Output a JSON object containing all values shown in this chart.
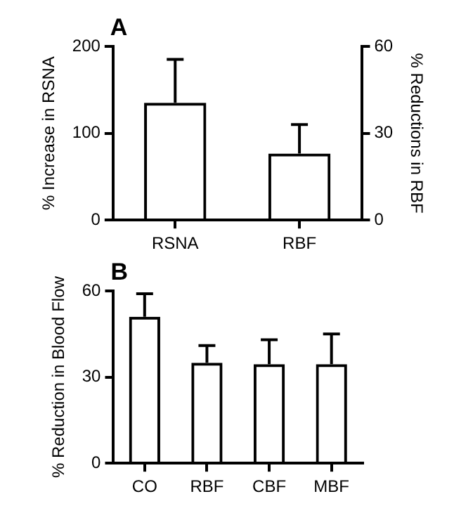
{
  "chart_data": [
    {
      "type": "bar",
      "title": "A",
      "categories": [
        "RSNA",
        "RBF"
      ],
      "ylabel": "% Increase in RSNA",
      "y2label": "% Reductions in RBF",
      "ylim": [
        0,
        200
      ],
      "yticks": [
        0,
        100,
        200
      ],
      "y2lim": [
        0,
        60
      ],
      "y2ticks": [
        0,
        30,
        60
      ],
      "series": [
        {
          "color": "#000000",
          "values": [
            135,
            null
          ],
          "errors": [
            50,
            null
          ]
        },
        {
          "color": "#000000",
          "axis": "y2",
          "values": [
            null,
            23
          ],
          "errors": [
            null,
            10
          ]
        }
      ]
    },
    {
      "type": "bar",
      "title": "B",
      "categories": [
        "CO",
        "RBF",
        "CBF",
        "MBF"
      ],
      "ylabel": "% Reduction in Blood Flow",
      "ylim": [
        0,
        60
      ],
      "yticks": [
        0,
        30,
        60
      ],
      "color": "#000000",
      "values": [
        51,
        35,
        34.5,
        34.5
      ],
      "errors": [
        8,
        6,
        8.5,
        10.5
      ]
    }
  ]
}
